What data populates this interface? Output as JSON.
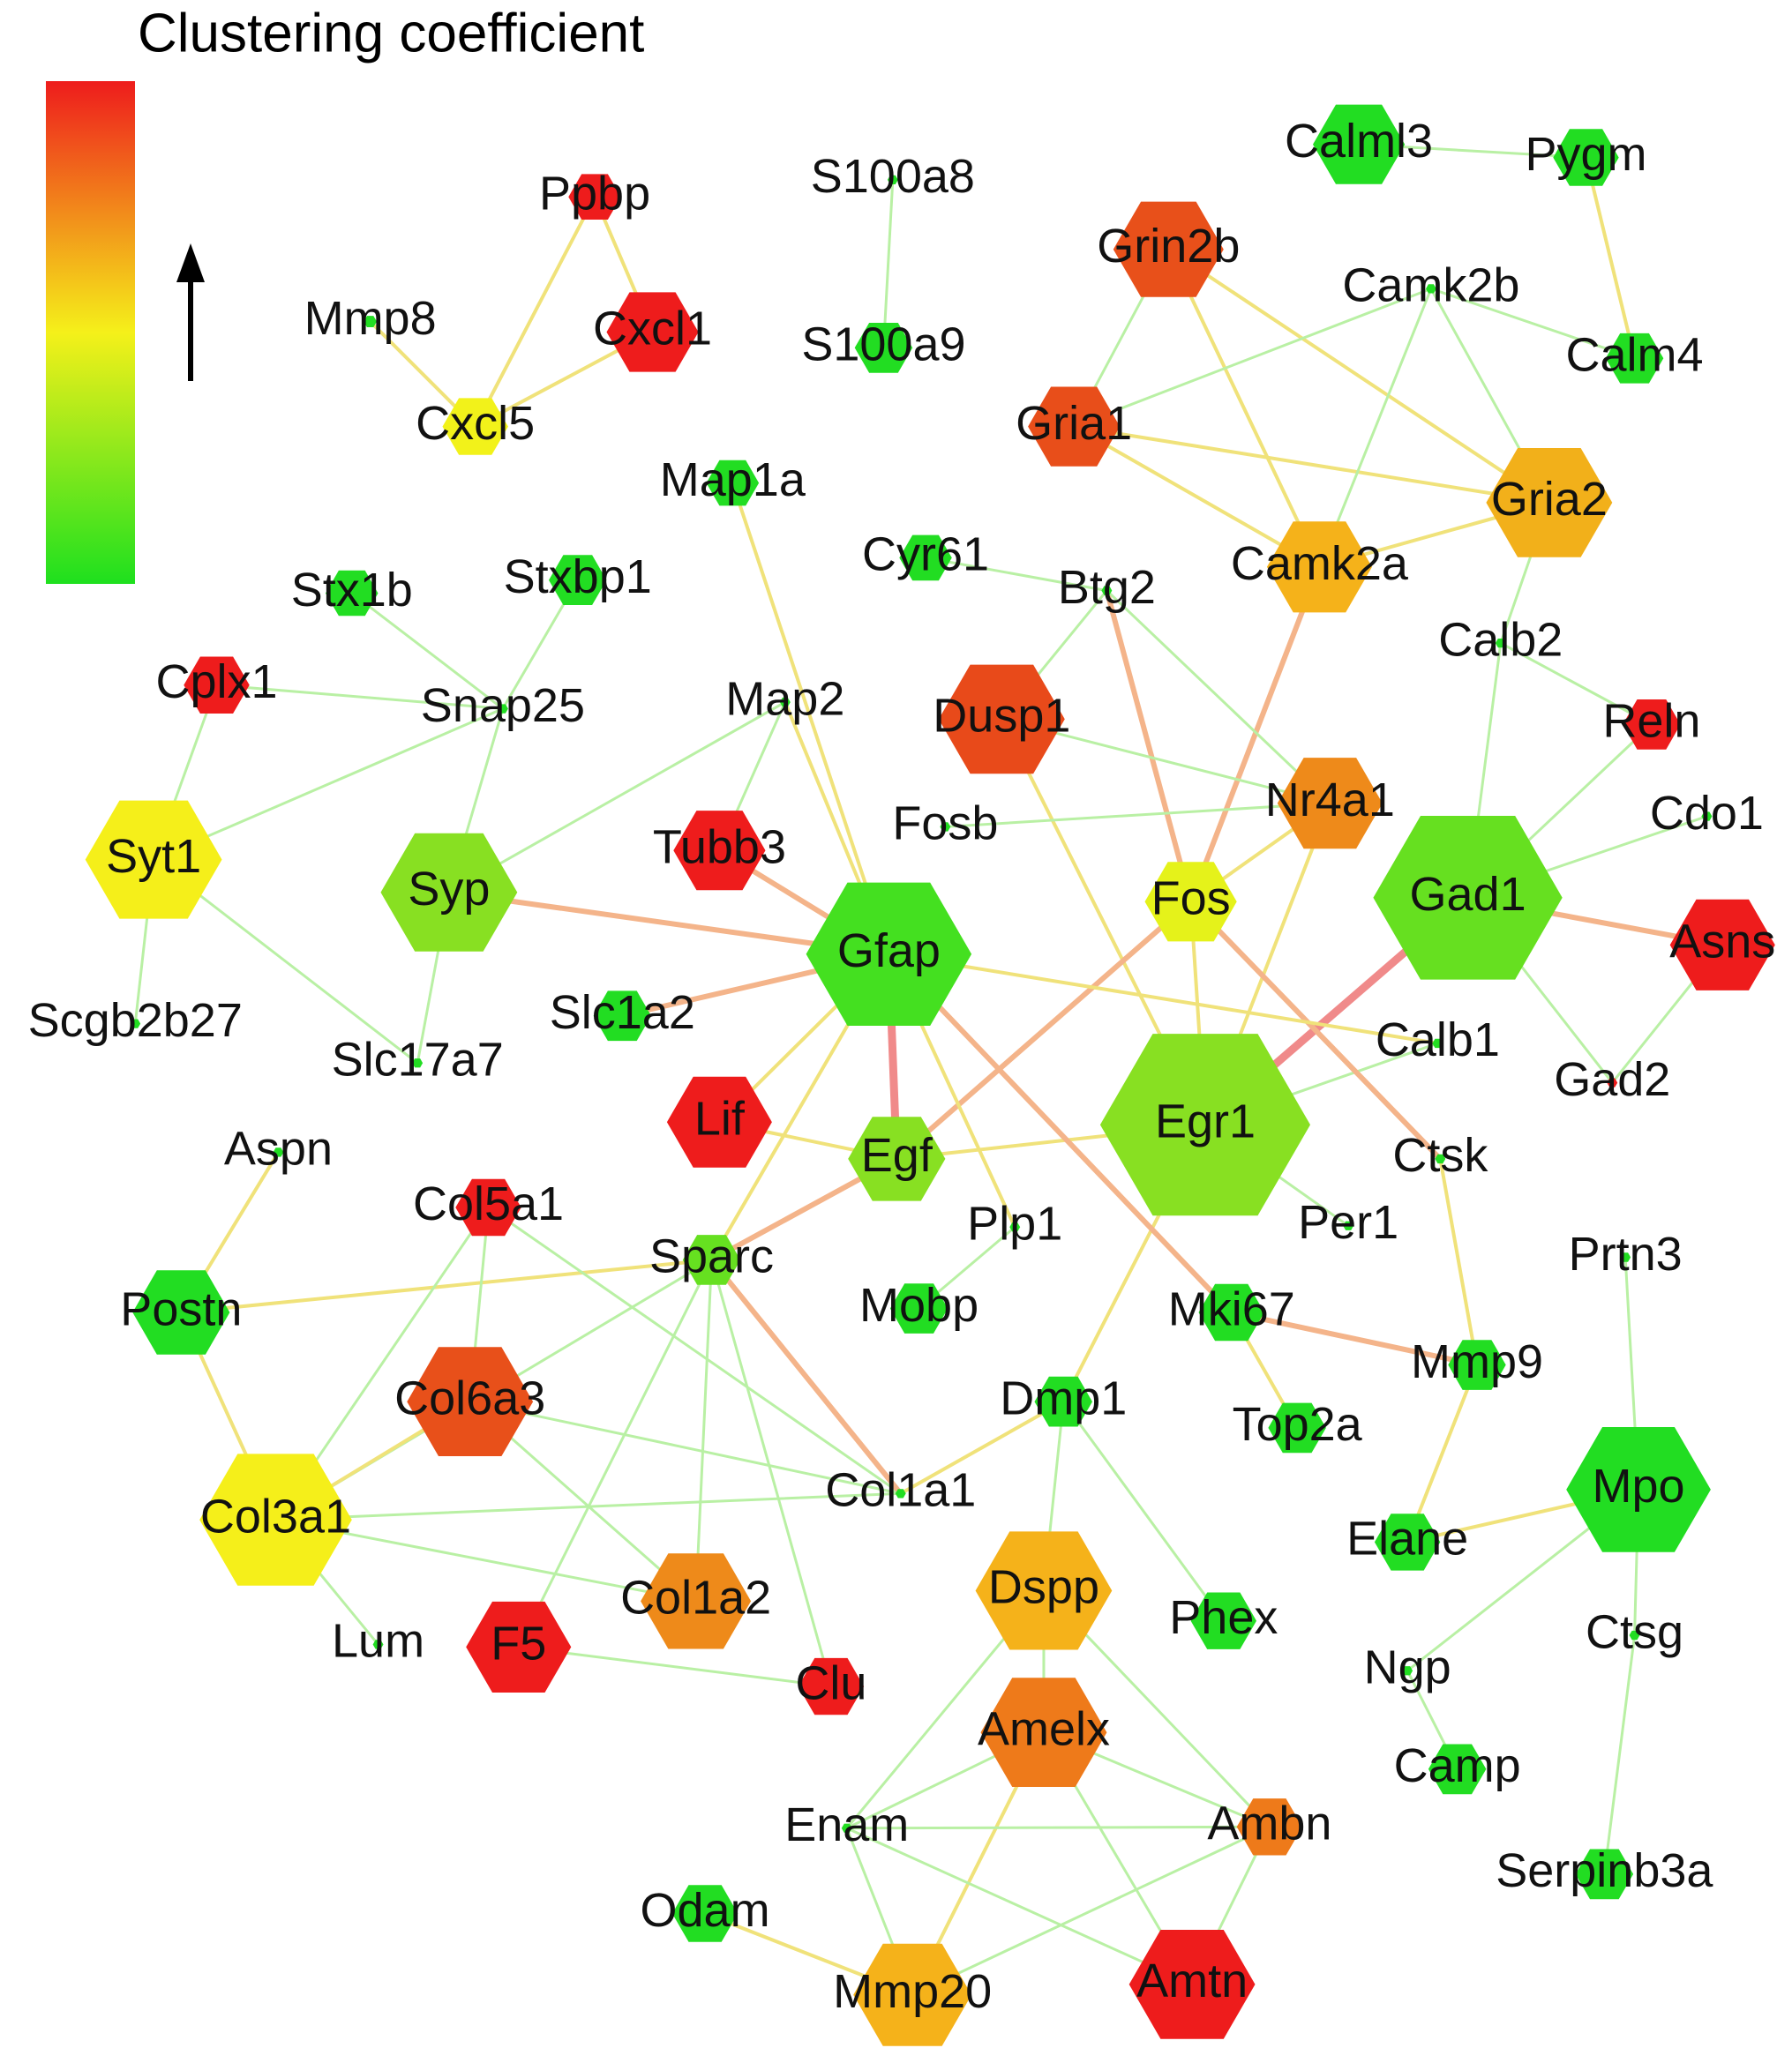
{
  "title": "Clustering coefficient",
  "nodes": [
    {
      "label": "Ppbp",
      "color": "#ee1c1c"
    },
    {
      "label": "Mmp8",
      "color": "#22dd22"
    },
    {
      "label": "Cxcl1",
      "color": "#ee1c1c"
    },
    {
      "label": "Cxcl5",
      "color": "#f2f21a"
    },
    {
      "label": "S100a8",
      "color": "#22dd22"
    },
    {
      "label": "S100a9",
      "color": "#22dd22"
    },
    {
      "label": "Calml3",
      "color": "#22dd22"
    },
    {
      "label": "Pygm",
      "color": "#22dd22"
    },
    {
      "label": "Grin2b",
      "color": "#e8501a"
    },
    {
      "label": "Camk2b",
      "color": "#22dd22"
    },
    {
      "label": "Calm4",
      "color": "#22dd22"
    },
    {
      "label": "Gria1",
      "color": "#e84e1a"
    },
    {
      "label": "Gria2",
      "color": "#f2b01a"
    },
    {
      "label": "Map1a",
      "color": "#22dd22"
    },
    {
      "label": "Cyr61",
      "color": "#22dd22"
    },
    {
      "label": "Btg2",
      "color": "#22dd22"
    },
    {
      "label": "Camk2a",
      "color": "#f5b21a"
    },
    {
      "label": "Stx1b",
      "color": "#22dd22"
    },
    {
      "label": "Stxbp1",
      "color": "#22dd22"
    },
    {
      "label": "Calb2",
      "color": "#22dd22"
    },
    {
      "label": "Cplx1",
      "color": "#ee1c1c"
    },
    {
      "label": "Snap25",
      "color": "#22dd22"
    },
    {
      "label": "Map2",
      "color": "#22dd22"
    },
    {
      "label": "Dusp1",
      "color": "#e84a1a"
    },
    {
      "label": "Reln",
      "color": "#ee1c1c"
    },
    {
      "label": "Nr4a1",
      "color": "#ee8a1a"
    },
    {
      "label": "Cdo1",
      "color": "#22dd22"
    },
    {
      "label": "Fosb",
      "color": "#22dd22"
    },
    {
      "label": "Syt1",
      "color": "#f5ef1a"
    },
    {
      "label": "Syp",
      "color": "#88e022"
    },
    {
      "label": "Tubb3",
      "color": "#ee1c1c"
    },
    {
      "label": "Fos",
      "color": "#e5f21a"
    },
    {
      "label": "Gad1",
      "color": "#66e020"
    },
    {
      "label": "Asns",
      "color": "#ee1c1c"
    },
    {
      "label": "Gfap",
      "color": "#44e020"
    },
    {
      "label": "Slc1a2",
      "color": "#22dd22"
    },
    {
      "label": "Scgb2b27",
      "color": "#22dd22"
    },
    {
      "label": "Slc17a7",
      "color": "#22dd22"
    },
    {
      "label": "Calb1",
      "color": "#22dd22"
    },
    {
      "label": "Gad2",
      "color": "#ee1c1c"
    },
    {
      "label": "Lif",
      "color": "#ee1c1c"
    },
    {
      "label": "Egf",
      "color": "#88e022"
    },
    {
      "label": "Egr1",
      "color": "#88e022"
    },
    {
      "label": "Aspn",
      "color": "#22dd22"
    },
    {
      "label": "Ctsk",
      "color": "#22dd22"
    },
    {
      "label": "Col5a1",
      "color": "#ee1c1c"
    },
    {
      "label": "Plp1",
      "color": "#22dd22"
    },
    {
      "label": "Per1",
      "color": "#22dd22"
    },
    {
      "label": "Sparc",
      "color": "#66e020"
    },
    {
      "label": "Prtn3",
      "color": "#22dd22"
    },
    {
      "label": "Postn",
      "color": "#22dd22"
    },
    {
      "label": "Mobp",
      "color": "#22dd22"
    },
    {
      "label": "Mki67",
      "color": "#22dd22"
    },
    {
      "label": "Col6a3",
      "color": "#e8501a"
    },
    {
      "label": "Mmp9",
      "color": "#22dd22"
    },
    {
      "label": "Dmp1",
      "color": "#22dd22"
    },
    {
      "label": "Top2a",
      "color": "#22dd22"
    },
    {
      "label": "Col1a1",
      "color": "#22dd22"
    },
    {
      "label": "Col3a1",
      "color": "#f5ef1a"
    },
    {
      "label": "Mpo",
      "color": "#22dd22"
    },
    {
      "label": "Elane",
      "color": "#22dd22"
    },
    {
      "label": "Dspp",
      "color": "#f5b21a"
    },
    {
      "label": "Phex",
      "color": "#22dd22"
    },
    {
      "label": "Col1a2",
      "color": "#ee8a1a"
    },
    {
      "label": "Lum",
      "color": "#22dd22"
    },
    {
      "label": "F5",
      "color": "#ee1c1c"
    },
    {
      "label": "Ctsg",
      "color": "#22dd22"
    },
    {
      "label": "Ngp",
      "color": "#22dd22"
    },
    {
      "label": "Clu",
      "color": "#ee1c1c"
    },
    {
      "label": "Amelx",
      "color": "#ee7a1a"
    },
    {
      "label": "Camp",
      "color": "#22dd22"
    },
    {
      "label": "Enam",
      "color": "#22dd22"
    },
    {
      "label": "Ambn",
      "color": "#ee7a1a"
    },
    {
      "label": "Serpinb3a",
      "color": "#22dd22"
    },
    {
      "label": "Odam",
      "color": "#22dd22"
    },
    {
      "label": "Mmp20",
      "color": "#f5b21a"
    },
    {
      "label": "Amtn",
      "color": "#ee1c1c"
    }
  ]
}
